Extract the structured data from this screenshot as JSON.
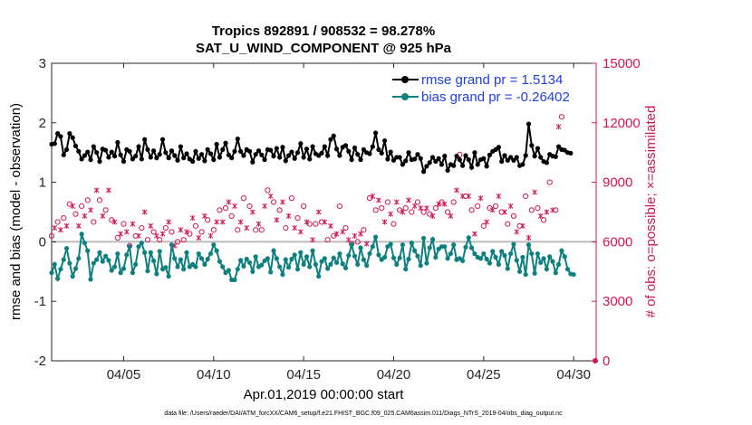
{
  "chart_data": {
    "type": "line",
    "title": "Tropics 892891 / 908532 = 98.278%",
    "subtitle": "SAT_U_WIND_COMPONENT @ 925 hPa",
    "xlabel": "Apr.01,2019 00:00:00 start",
    "ylabel_left": "rmse and bias (model - observation)",
    "ylabel_right": "# of obs: o=possible; ×=assimilated",
    "footnote": "data file: /Users/raeder/DAI/ATM_forcXX/CAM6_setup/f.e21.FHIST_BGC.f09_025.CAM6assim.011/Diags_NTrS_2019-04/obs_diag_output.nc",
    "xlim": [
      1,
      31.25
    ],
    "ylim_left": [
      -2,
      3
    ],
    "ylim_right": [
      0,
      15000
    ],
    "x_ticks": [
      5,
      10,
      15,
      20,
      25,
      30
    ],
    "x_tick_labels": [
      "04/05",
      "04/10",
      "04/15",
      "04/20",
      "04/25",
      "04/30"
    ],
    "y_ticks_left": [
      "-2",
      "-1",
      "0",
      "1",
      "2",
      "3"
    ],
    "y_ticks_right": [
      "0",
      "3000",
      "6000",
      "9000",
      "12000",
      "15000"
    ],
    "zero_line": 0,
    "legend_position": "top-right",
    "colors": {
      "rmse": "#000000",
      "bias": "#0e8080",
      "obs": "#d4145a",
      "zero": "#bbbbbb"
    },
    "series": [
      {
        "name": "rmse grand pr = 1.5134",
        "key": "rmse",
        "values": [
          1.64,
          1.65,
          1.82,
          1.77,
          1.46,
          1.55,
          1.82,
          1.75,
          1.61,
          1.52,
          1.39,
          1.45,
          1.51,
          1.38,
          1.6,
          1.5,
          1.35,
          1.56,
          1.54,
          1.42,
          1.51,
          1.44,
          1.67,
          1.46,
          1.35,
          1.55,
          1.52,
          1.39,
          1.44,
          1.6,
          1.39,
          1.72,
          1.55,
          1.42,
          1.53,
          1.41,
          1.47,
          1.72,
          1.5,
          1.41,
          1.53,
          1.45,
          1.37,
          1.6,
          1.41,
          1.48,
          1.39,
          1.35,
          1.52,
          1.4,
          1.47,
          1.36,
          1.55,
          1.48,
          1.38,
          1.64,
          1.42,
          1.55,
          1.66,
          1.46,
          1.41,
          1.52,
          1.73,
          1.52,
          1.45,
          1.55,
          1.52,
          1.34,
          1.47,
          1.53,
          1.46,
          1.38,
          1.55,
          1.54,
          1.44,
          1.57,
          1.42,
          1.59,
          1.36,
          1.45,
          1.51,
          1.4,
          1.5,
          1.65,
          1.42,
          1.56,
          1.39,
          1.6,
          1.48,
          1.45,
          1.49,
          1.6,
          1.45,
          1.72,
          1.78,
          1.56,
          1.45,
          1.59,
          1.62,
          1.52,
          1.38,
          1.58,
          1.47,
          1.38,
          1.55,
          1.5,
          1.48,
          1.6,
          1.83,
          1.55,
          1.49,
          1.7,
          1.39,
          1.51,
          1.37,
          1.42,
          1.42,
          1.3,
          1.36,
          1.5,
          1.38,
          1.39,
          1.47,
          1.4,
          1.18,
          1.27,
          1.33,
          1.42,
          1.35,
          1.4,
          1.3,
          1.44,
          1.2,
          1.3,
          1.28,
          1.44,
          1.38,
          1.28,
          1.45,
          1.38,
          1.25,
          1.5,
          1.3,
          1.38,
          1.4,
          1.27,
          1.46,
          1.52,
          1.55,
          1.59,
          1.35,
          1.45,
          1.37,
          1.42,
          1.37,
          1.42,
          1.28,
          1.3,
          1.45,
          1.98,
          1.62,
          1.44,
          1.57,
          1.42,
          1.35,
          1.33,
          1.47,
          1.44,
          1.43,
          1.6,
          1.55,
          1.54,
          1.5,
          1.49
        ]
      },
      {
        "name": "bias grand pr = -0.26402",
        "key": "bias",
        "values": [
          -0.52,
          -0.38,
          -0.62,
          -0.46,
          -0.3,
          -0.11,
          -0.36,
          -0.58,
          -0.45,
          -0.28,
          0.13,
          -0.02,
          -0.15,
          -0.63,
          -0.36,
          -0.3,
          -0.18,
          -0.33,
          -0.24,
          -0.31,
          -0.48,
          -0.42,
          -0.2,
          -0.52,
          -0.45,
          -0.22,
          -0.08,
          -0.52,
          -0.38,
          -0.08,
          -0.02,
          -0.18,
          -0.49,
          -0.18,
          -0.32,
          -0.54,
          -0.16,
          -0.46,
          -0.43,
          -0.58,
          -0.05,
          -0.28,
          -0.42,
          -0.3,
          -0.46,
          -0.18,
          -0.42,
          -0.38,
          -0.42,
          -0.2,
          -0.28,
          -0.38,
          -0.29,
          -0.2,
          -0.05,
          -0.15,
          -0.33,
          -0.42,
          -0.52,
          -0.48,
          -0.64,
          -0.64,
          -0.46,
          -0.31,
          -0.41,
          -0.29,
          -0.35,
          -0.5,
          -0.25,
          -0.42,
          -0.39,
          -0.32,
          -0.28,
          -0.51,
          -0.15,
          -0.28,
          -0.42,
          -0.55,
          -0.3,
          -0.43,
          -0.29,
          -0.22,
          -0.46,
          -0.18,
          -0.38,
          -0.25,
          -0.42,
          -0.15,
          -0.38,
          -0.58,
          -0.33,
          -0.28,
          -0.45,
          -0.38,
          -0.27,
          -0.35,
          -0.2,
          -0.37,
          -0.44,
          -0.23,
          -0.05,
          -0.24,
          -0.38,
          -0.1,
          -0.3,
          -0.4,
          -0.2,
          -0.08,
          0.08,
          -0.22,
          -0.3,
          -0.26,
          -0.08,
          -0.04,
          -0.27,
          -0.38,
          -0.27,
          -0.05,
          -0.46,
          -0.29,
          -0.02,
          -0.15,
          -0.24,
          -0.4,
          0.06,
          -0.36,
          -0.1,
          0.04,
          -0.26,
          -0.12,
          -0.08,
          -0.08,
          -0.28,
          -0.2,
          -0.05,
          -0.3,
          -0.28,
          -0.32,
          -0.09,
          0.07,
          -0.1,
          -0.2,
          -0.26,
          -0.28,
          -0.2,
          -0.29,
          -0.36,
          -0.16,
          -0.26,
          -0.38,
          -0.16,
          -0.23,
          -0.45,
          -0.2,
          -0.04,
          -0.31,
          -0.5,
          -0.26,
          -0.55,
          -0.05,
          -0.2,
          -0.53,
          -0.2,
          -0.35,
          -0.28,
          -0.46,
          -0.25,
          -0.33,
          -0.52,
          -0.38,
          -0.15,
          -0.25,
          -0.46,
          -0.54,
          -0.55
        ]
      },
      {
        "name": "obs_possible",
        "key": "obs",
        "values": [
          6300,
          6700,
          7000,
          6600,
          7200,
          6800,
          7900,
          7800,
          7400,
          6800,
          7800,
          7300,
          8100,
          7600,
          7000,
          8600,
          8100,
          7300,
          7600,
          8600,
          7100,
          7000,
          6200,
          6400,
          6900,
          6500,
          5800,
          6900,
          6300,
          6300,
          6700,
          7500,
          6100,
          6800,
          6500,
          6300,
          6100,
          6400,
          6700,
          7000,
          6500,
          5800,
          6000,
          6600,
          6100,
          6500,
          6400,
          7200,
          6800,
          6200,
          6500,
          7300,
          7100,
          6300,
          6600,
          7000,
          7600,
          7000,
          7700,
          8000,
          7300,
          7800,
          6600,
          7000,
          8200,
          6700,
          7800,
          7500,
          6600,
          6900,
          6600,
          7800,
          8600,
          8300,
          8000,
          7100,
          7600,
          8000,
          6700,
          7300,
          8200,
          6700,
          7200,
          6500,
          7800,
          7000,
          6900,
          6100,
          6900,
          7500,
          7000,
          7000,
          6100,
          6800,
          6300,
          6400,
          7800,
          6500,
          6700,
          6100,
          5900,
          6300,
          6000,
          6400,
          6600,
          5900,
          8200,
          8300,
          7600,
          8100,
          7700,
          7000,
          8000,
          7400,
          6900,
          8000,
          7600,
          7500,
          7700,
          8100,
          7500,
          7800,
          8000,
          7700,
          7500,
          7700,
          7400,
          7300,
          7700,
          7900,
          8000,
          7900,
          7500,
          7300,
          8000,
          8600,
          10400,
          8300,
          8300,
          8300,
          7600,
          6400,
          7800,
          8200,
          6800,
          7000,
          7700,
          7600,
          7800,
          8300,
          7500,
          7500,
          6900,
          7800,
          7300,
          6500,
          6800,
          6800,
          8300,
          6200,
          7600,
          8500,
          7700,
          7300,
          7100,
          7500,
          9000,
          7600,
          7600,
          11800,
          12300
        ]
      }
    ]
  }
}
